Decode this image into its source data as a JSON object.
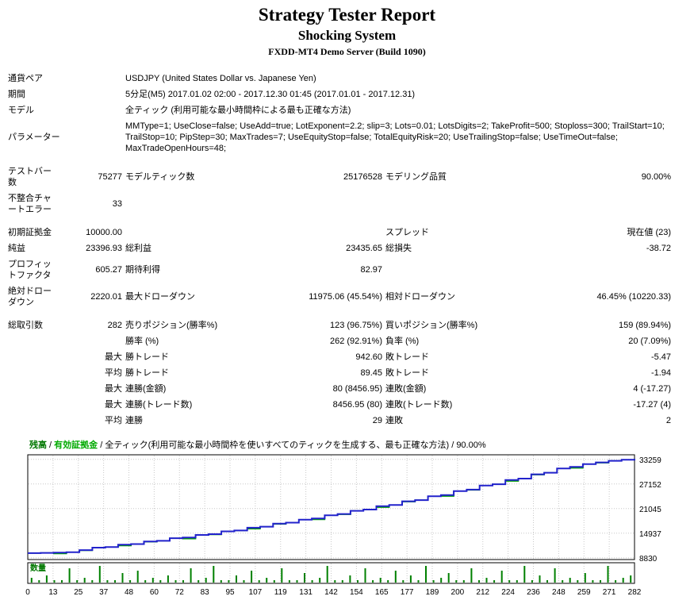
{
  "header": {
    "title": "Strategy Tester Report",
    "subtitle": "Shocking System",
    "server": "FXDD-MT4 Demo Server (Build 1090)"
  },
  "report": {
    "info_rows": [
      {
        "label": "通貨ペア",
        "value": "USDJPY (United States Dollar vs. Japanese Yen)"
      },
      {
        "label": "期間",
        "value": "5分足(M5) 2017.01.02 02:00 - 2017.12.30 01:45 (2017.01.01 - 2017.12.31)"
      },
      {
        "label": "モデル",
        "value": "全ティック (利用可能な最小時間枠による最も正確な方法)"
      },
      {
        "label": "パラメーター",
        "value": "MMType=1; UseClose=false; UseAdd=true; LotExponent=2.2; slip=3; Lots=0.01; LotsDigits=2; TakeProfit=500; Stoploss=300; TrailStart=10; TrailStop=10; PipStep=30; MaxTrades=7; UseEquityStop=false; TotalEquityRisk=20; UseTrailingStop=false; UseTimeOut=false; MaxTradeOpenHours=48;"
      }
    ],
    "stat_rows": [
      {
        "spacer": true
      },
      {
        "cells": [
          "テストバー数",
          "75277",
          "モデルティック数",
          "25176528",
          "モデリング品質",
          "90.00%"
        ]
      },
      {
        "cells": [
          "不整合チャートエラー",
          "33",
          "",
          "",
          "",
          ""
        ]
      },
      {
        "spacer": true
      },
      {
        "cells": [
          "初期証拠金",
          "10000.00",
          "",
          "",
          "スプレッド",
          "現在値 (23)"
        ]
      },
      {
        "cells": [
          "純益",
          "23396.93",
          "総利益",
          "23435.65",
          "総損失",
          "-38.72"
        ]
      },
      {
        "cells": [
          "プロフィットファクタ",
          "605.27",
          "期待利得",
          "82.97",
          "",
          ""
        ]
      },
      {
        "cells": [
          "絶対ドローダウン",
          "2220.01",
          "最大ドローダウン",
          "11975.06 (45.54%)",
          "相対ドローダウン",
          "46.45% (10220.33)"
        ]
      },
      {
        "spacer": true
      },
      {
        "cells": [
          "総取引数",
          "282",
          "売りポジション(勝率%)",
          "123 (96.75%)",
          "買いポジション(勝率%)",
          "159 (89.94%)"
        ]
      },
      {
        "cells": [
          "",
          "",
          "勝率 (%)",
          "262 (92.91%)",
          "負率 (%)",
          "20 (7.09%)"
        ]
      },
      {
        "cells": [
          "",
          "最大",
          "勝トレード",
          "942.60",
          "敗トレード",
          "-5.47"
        ]
      },
      {
        "cells": [
          "",
          "平均",
          "勝トレード",
          "89.45",
          "敗トレード",
          "-1.94"
        ]
      },
      {
        "cells": [
          "",
          "最大",
          "連勝(金額)",
          "80 (8456.95)",
          "連敗(金額)",
          "4 (-17.27)"
        ]
      },
      {
        "cells": [
          "",
          "最大",
          "連勝(トレード数)",
          "8456.95 (80)",
          "連敗(トレード数)",
          "-17.27 (4)"
        ]
      },
      {
        "cells": [
          "",
          "平均",
          "連勝",
          "29",
          "連敗",
          "2"
        ]
      }
    ]
  },
  "chart_legend": {
    "balance_label": "残高",
    "equity_label": "有効証拠金",
    "model_note": "全ティック(利用可能な最小時間枠を使いすべてのティックを生成する、最も正確な方法)",
    "quality": "90.00%",
    "sep": " / "
  },
  "chart_data": {
    "type": "line",
    "title": "",
    "xlabel": "取引数",
    "ylabel": "残高",
    "xlim": [
      0,
      282
    ],
    "ylim": [
      8400,
      34400
    ],
    "grid": true,
    "y_ticks": [
      33259,
      27152,
      21045,
      14937,
      8830
    ],
    "x_ticks": [
      0,
      13,
      25,
      37,
      48,
      60,
      72,
      83,
      95,
      107,
      119,
      131,
      142,
      154,
      165,
      177,
      189,
      200,
      212,
      224,
      236,
      248,
      259,
      271,
      282
    ],
    "x": [
      0,
      6,
      12,
      18,
      24,
      30,
      36,
      42,
      48,
      54,
      60,
      66,
      72,
      78,
      84,
      90,
      96,
      102,
      108,
      114,
      120,
      126,
      132,
      138,
      144,
      150,
      156,
      162,
      168,
      174,
      180,
      186,
      192,
      198,
      204,
      210,
      216,
      222,
      228,
      234,
      240,
      246,
      252,
      258,
      264,
      270,
      276,
      282
    ],
    "series": [
      {
        "name": "残高",
        "color": "#2222cc",
        "values": [
          10000,
          10060,
          10130,
          10220,
          10750,
          11350,
          11500,
          12100,
          12250,
          12900,
          13050,
          13700,
          13850,
          14500,
          14700,
          15400,
          15600,
          16300,
          16550,
          17300,
          17550,
          18300,
          18600,
          19400,
          19700,
          20500,
          20800,
          21650,
          21950,
          22850,
          23150,
          24100,
          24400,
          25400,
          25750,
          26750,
          27100,
          28150,
          28500,
          29550,
          29950,
          31000,
          31400,
          32100,
          32500,
          32900,
          33150,
          33397
        ]
      },
      {
        "name": "有効証拠金",
        "color": "#00a000",
        "values": [
          10000,
          10060,
          9870,
          10220,
          10660,
          11350,
          11500,
          11840,
          12250,
          12810,
          13050,
          13700,
          13590,
          14500,
          14610,
          15400,
          15600,
          16040,
          16550,
          17210,
          17550,
          18300,
          18340,
          19400,
          19610,
          20500,
          20800,
          21390,
          21950,
          22760,
          23150,
          24100,
          24140,
          25400,
          25660,
          26750,
          27100,
          27890,
          28500,
          29460,
          29950,
          31000,
          31140,
          32100,
          32410,
          32900,
          33150,
          33397
        ]
      }
    ],
    "volume": {
      "name": "数量",
      "color": "#008000",
      "max": 7,
      "values": [
        2,
        1,
        3,
        1,
        1,
        6,
        1,
        2,
        1,
        7,
        1,
        1,
        4,
        1,
        5,
        1,
        2,
        1,
        3,
        1,
        1,
        6,
        1,
        2,
        7,
        1,
        1,
        3,
        1,
        5,
        1,
        2,
        1,
        6,
        1,
        1,
        4,
        1,
        2,
        7,
        1,
        1,
        3,
        1,
        6,
        1,
        2,
        1,
        5,
        1,
        3,
        1,
        7,
        1,
        2,
        4,
        1,
        1,
        6,
        1,
        2,
        1,
        5,
        1,
        1,
        7,
        1,
        3,
        1,
        6,
        1,
        2,
        1,
        4,
        1,
        1,
        7,
        1,
        2,
        3
      ]
    }
  }
}
